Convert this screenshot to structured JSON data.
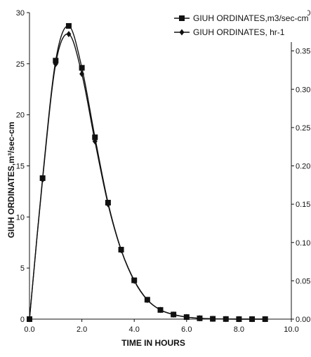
{
  "chart_data": {
    "type": "line",
    "title": "",
    "xlabel": "TIME IN HOURS",
    "ylabel": "GIUH ORDINATES,m³/sec-cm",
    "y2label": "",
    "xlim": [
      0,
      10
    ],
    "ylim": [
      0,
      30
    ],
    "y2lim": [
      0,
      0.4
    ],
    "x_ticks": [
      "0.0",
      "2.0",
      "4.0",
      "6.0",
      "8.0",
      "10.0"
    ],
    "y_ticks": [
      "0",
      "5",
      "10",
      "15",
      "20",
      "25",
      "30"
    ],
    "y2_ticks": [
      "0.00",
      "0.05",
      "0.10",
      "0.15",
      "0.20",
      "0.25",
      "0.30",
      "0.35",
      "0.40"
    ],
    "grid": false,
    "legend_position": "top-right",
    "x": [
      0,
      0.5,
      1.0,
      1.5,
      2.0,
      2.5,
      3.0,
      3.5,
      4.0,
      4.5,
      5.0,
      5.5,
      6.0,
      6.5,
      7.0,
      7.5,
      8.0,
      8.5,
      9.0
    ],
    "series": [
      {
        "name": "GIUH ORDINATES,m3/sec-cm",
        "axis": "left",
        "marker": "square",
        "values": [
          0,
          13.8,
          25.3,
          28.7,
          24.6,
          17.8,
          11.4,
          6.8,
          3.8,
          1.9,
          0.9,
          0.45,
          0.2,
          0.08,
          0.03,
          0.01,
          0.0,
          0.0,
          0.0
        ]
      },
      {
        "name": "GIUH ORDINATES, hr-1",
        "axis": "right",
        "marker": "diamond",
        "values": [
          0,
          0.182,
          0.333,
          0.372,
          0.32,
          0.232,
          0.15,
          0.09,
          0.05,
          0.025,
          0.012,
          0.006,
          0.0027,
          0.0011,
          0.0004,
          0.0001,
          0.0,
          0.0,
          0.0
        ]
      }
    ]
  }
}
